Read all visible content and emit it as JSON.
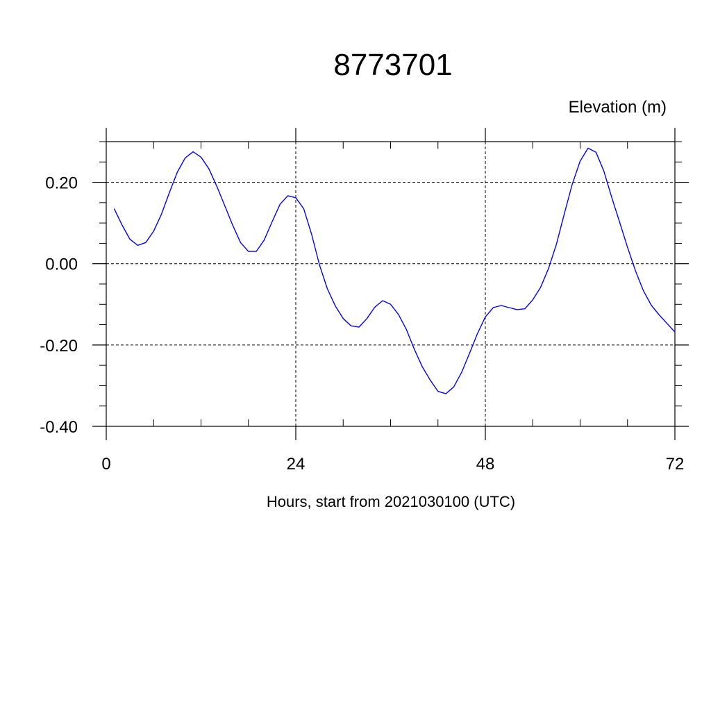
{
  "chart_data": {
    "type": "line",
    "title": "8773701",
    "ylabel": "Elevation (m)",
    "xlabel": "Hours, start from 2021030100 (UTC)",
    "xlim": [
      0,
      72
    ],
    "ylim": [
      -0.4,
      0.3
    ],
    "x_ticks": [
      0,
      24,
      48,
      72
    ],
    "x_tick_labels": [
      "0",
      "24",
      "48",
      "72"
    ],
    "y_ticks": [
      -0.4,
      -0.2,
      0.0,
      0.2
    ],
    "y_tick_labels": [
      "-0.40",
      "-0.20",
      "0.00",
      "0.20"
    ],
    "grid": true,
    "line_color": "#0000ff",
    "series": [
      {
        "x": [
          1,
          2,
          3,
          4,
          5,
          6,
          7,
          8,
          9,
          10,
          11,
          12,
          13,
          14,
          15,
          16,
          17,
          18,
          19,
          20,
          21,
          22,
          23,
          24,
          25,
          26,
          27,
          28,
          29,
          30,
          31,
          32,
          33,
          34,
          35,
          36,
          37,
          38,
          39,
          40,
          41,
          42,
          43,
          44,
          45,
          46,
          47,
          48,
          49,
          50,
          51,
          52,
          53,
          54,
          55,
          56,
          57,
          58,
          59,
          60,
          61,
          62,
          63,
          64,
          65,
          66,
          67,
          68,
          69,
          70,
          71,
          72
        ],
        "values": [
          0.135,
          0.095,
          0.06,
          0.045,
          0.052,
          0.08,
          0.122,
          0.175,
          0.225,
          0.26,
          0.275,
          0.262,
          0.233,
          0.19,
          0.143,
          0.095,
          0.052,
          0.03,
          0.03,
          0.058,
          0.103,
          0.146,
          0.167,
          0.162,
          0.135,
          0.072,
          -0.003,
          -0.062,
          -0.104,
          -0.135,
          -0.153,
          -0.156,
          -0.135,
          -0.107,
          -0.091,
          -0.1,
          -0.125,
          -0.162,
          -0.21,
          -0.253,
          -0.286,
          -0.314,
          -0.32,
          -0.303,
          -0.267,
          -0.22,
          -0.172,
          -0.131,
          -0.108,
          -0.103,
          -0.108,
          -0.113,
          -0.111,
          -0.089,
          -0.058,
          -0.012,
          0.048,
          0.123,
          0.195,
          0.252,
          0.284,
          0.274,
          0.228,
          0.163,
          0.102,
          0.04,
          -0.017,
          -0.066,
          -0.102,
          -0.126,
          -0.147,
          -0.168
        ]
      }
    ]
  }
}
